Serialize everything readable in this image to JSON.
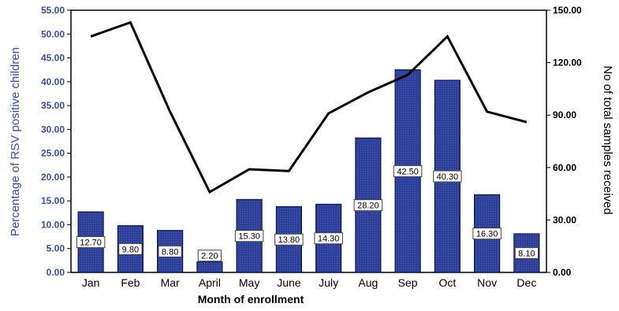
{
  "chart_data": {
    "type": "bar",
    "categories": [
      "Jan",
      "Feb",
      "Mar",
      "April",
      "May",
      "June",
      "July",
      "Aug",
      "Sep",
      "Oct",
      "Nov",
      "Dec"
    ],
    "series": [
      {
        "name": "Percentage of RSV positive children",
        "type": "bar",
        "axis": "left",
        "values": [
          12.7,
          9.8,
          8.8,
          2.2,
          15.3,
          13.8,
          14.3,
          28.2,
          42.5,
          40.3,
          16.3,
          8.1
        ],
        "labels": [
          "12.70",
          "9.80",
          "8.80",
          "2.20",
          "15.30",
          "13.80",
          "14.30",
          "28.20",
          "42.50",
          "40.30",
          "16.30",
          "8.10"
        ],
        "color": "#2b3d96"
      },
      {
        "name": "No of total samples received",
        "type": "line",
        "axis": "right",
        "values": [
          135,
          143,
          92,
          46,
          59,
          58,
          91,
          103,
          113,
          135,
          92,
          86
        ],
        "color": "#000000"
      }
    ],
    "xlabel": "Month of enrollment",
    "ylabel": "Percentage of RSV positive children",
    "y2label": "No of total samples received",
    "ylim": [
      0,
      55
    ],
    "y2lim": [
      0,
      150
    ],
    "yticks": [
      "0.00",
      "5.00",
      "10.00",
      "15.00",
      "20.00",
      "25.00",
      "30.00",
      "35.00",
      "40.00",
      "45.00",
      "50.00",
      "55.00"
    ],
    "y2ticks": [
      "0.00",
      "30.00",
      "60.00",
      "90.00",
      "120.00",
      "150.00"
    ],
    "grid": false,
    "colors": {
      "bar_fill": "#2b3d96",
      "bar_edge": "#0d1a52",
      "line": "#000000",
      "left_axis_text": "#3a4fa0"
    }
  }
}
